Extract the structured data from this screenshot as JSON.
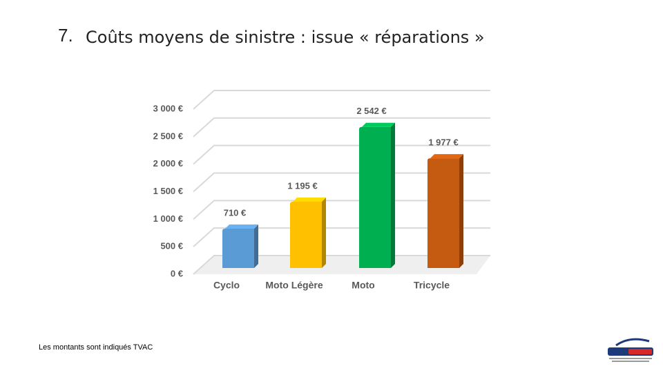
{
  "slide_number": "7.",
  "chart_data": {
    "type": "bar3d",
    "title": "Coûts moyens de sinistre : issue « réparations »",
    "categories": [
      "Cyclo",
      "Moto Légère",
      "Moto",
      "Tricycle"
    ],
    "values": [
      710,
      1195,
      2542,
      1977
    ],
    "value_labels": [
      "710 €",
      "1 195 €",
      "2 542 €",
      "1 977 €"
    ],
    "colors": [
      "#5b9bd5",
      "#ffc000",
      "#00b050",
      "#c55a11"
    ],
    "ylim": [
      0,
      3000
    ],
    "yticks": [
      {
        "value": 0,
        "label": "0 €"
      },
      {
        "value": 500,
        "label": "500 €"
      },
      {
        "value": 1000,
        "label": "1 000 €"
      },
      {
        "value": 1500,
        "label": "1 500 €"
      },
      {
        "value": 2000,
        "label": "2 000 €"
      },
      {
        "value": 2500,
        "label": "2 500 €"
      },
      {
        "value": 3000,
        "label": "3 000 €"
      }
    ],
    "grid": true
  },
  "footnote": "Les montants sont indiqués TVAC"
}
